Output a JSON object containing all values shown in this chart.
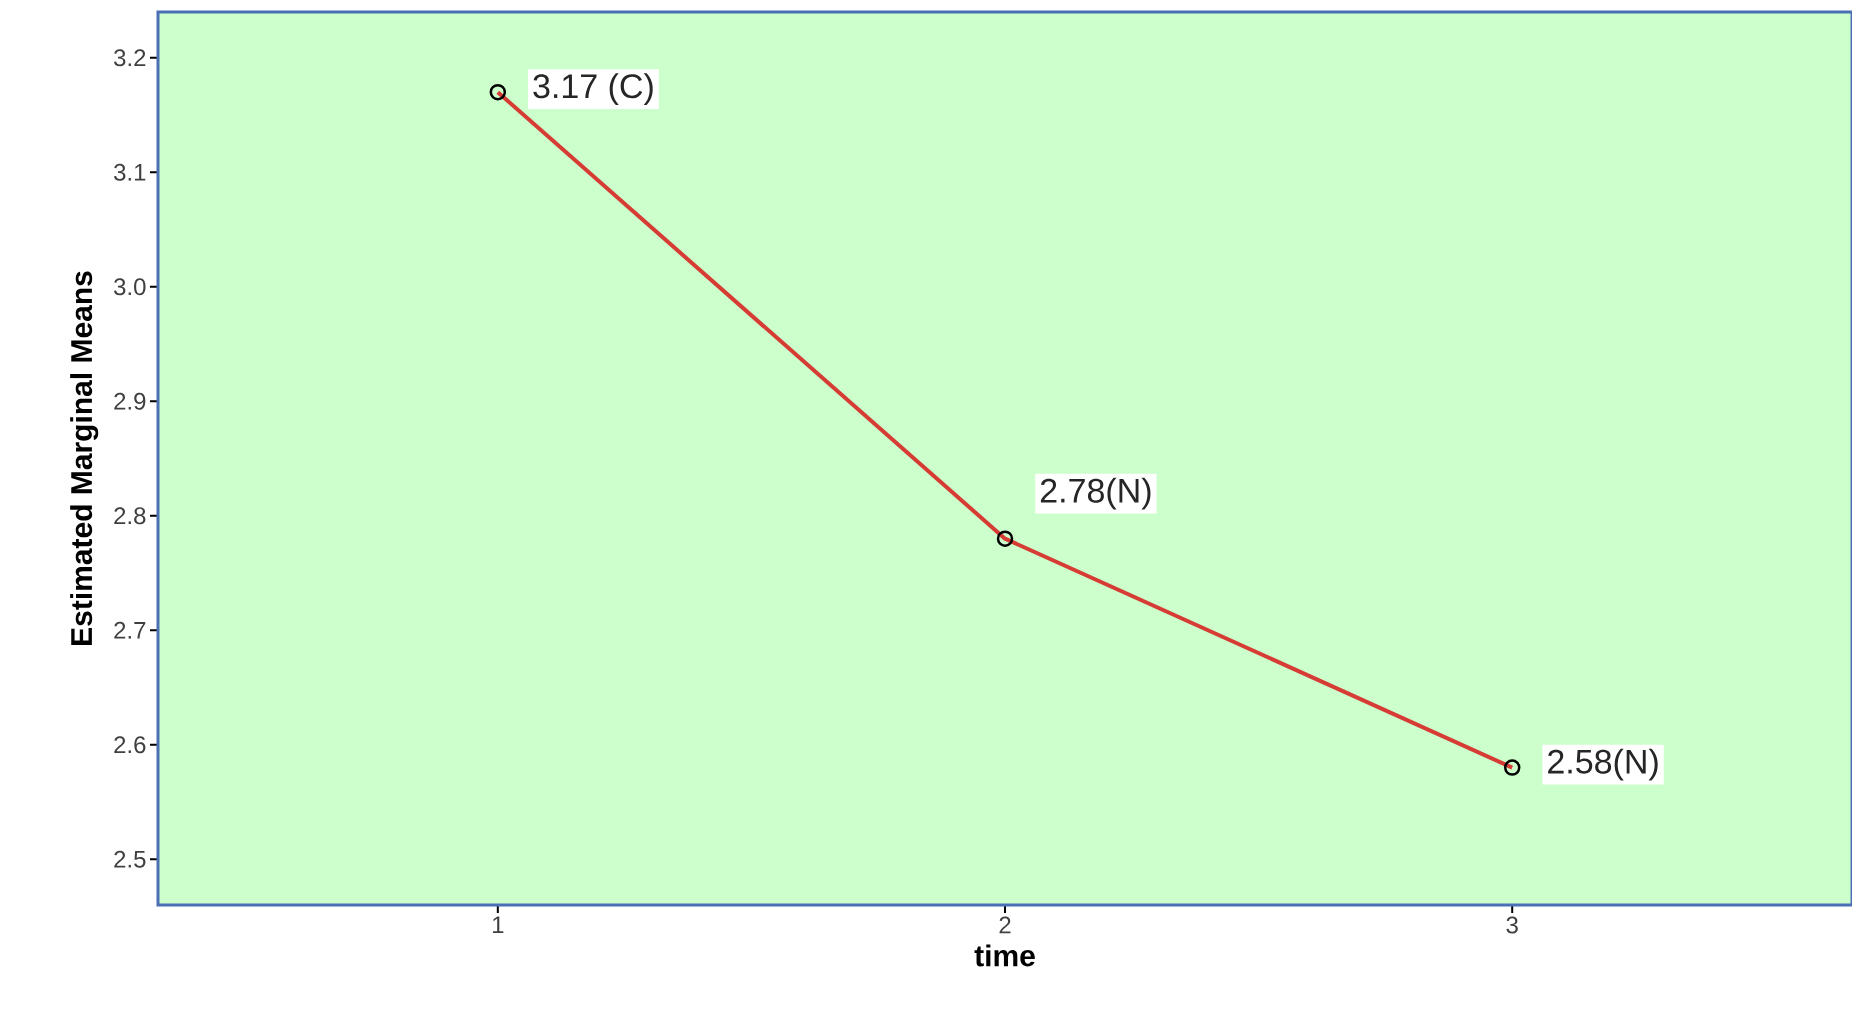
{
  "chart_data": {
    "type": "line",
    "xlabel": "time",
    "ylabel": "Estimated Marginal Means",
    "categories": [
      "1",
      "2",
      "3"
    ],
    "series": [
      {
        "color": "#d63c34",
        "values": [
          3.17,
          2.78,
          2.58
        ],
        "value_labels": [
          "3.17 (C)",
          "2.78(N)",
          "2.58(N)"
        ]
      }
    ],
    "ylim": [
      2.46,
      3.24
    ],
    "yticks": [
      {
        "value": 2.5,
        "label": "2.5"
      },
      {
        "value": 2.6,
        "label": "2.6"
      },
      {
        "value": 2.7,
        "label": "2.7"
      },
      {
        "value": 2.8,
        "label": "2.8"
      },
      {
        "value": 2.9,
        "label": "2.9"
      },
      {
        "value": 3.0,
        "label": "3.0"
      },
      {
        "value": 3.1,
        "label": "3.1"
      },
      {
        "value": 3.2,
        "label": "3.2"
      }
    ],
    "marker": "circle",
    "line_style": "solid"
  }
}
